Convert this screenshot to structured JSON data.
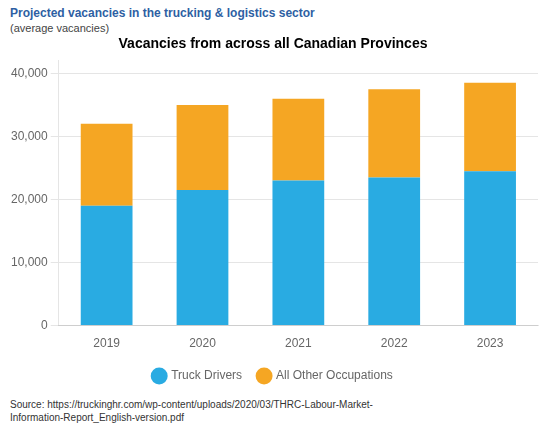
{
  "chart_data": {
    "type": "bar",
    "title": "Vacancies from across all Canadian Provinces",
    "subtitle": "(average vacancies)",
    "annotations": [
      "Projected vacancies in the trucking & logistics sector",
      "Source: https://truckinghr.com/wp-content/uploads/2020/03/THRC-Labour-Market-\nInformation-Report_English-version.pdf"
    ],
    "categories": [
      "2019",
      "2020",
      "2021",
      "2022",
      "2023"
    ],
    "series": [
      {
        "name": "Truck Drivers",
        "color": "#29ABE2",
        "values": [
          19000,
          21500,
          23000,
          23500,
          24500
        ]
      },
      {
        "name": "All Other Occupations",
        "color": "#F5A623",
        "values": [
          13000,
          13500,
          13000,
          14000,
          14000
        ]
      }
    ],
    "stacked": true,
    "ylim": [
      0,
      42000
    ],
    "yticks": [
      0,
      {
        "value": 10000,
        "label": "10,000"
      },
      {
        "value": 20000,
        "label": "20,000"
      },
      {
        "value": 30000,
        "label": "30,000"
      },
      {
        "value": 40000,
        "label": "40,000"
      }
    ],
    "grid": true,
    "legend": "bottom"
  }
}
